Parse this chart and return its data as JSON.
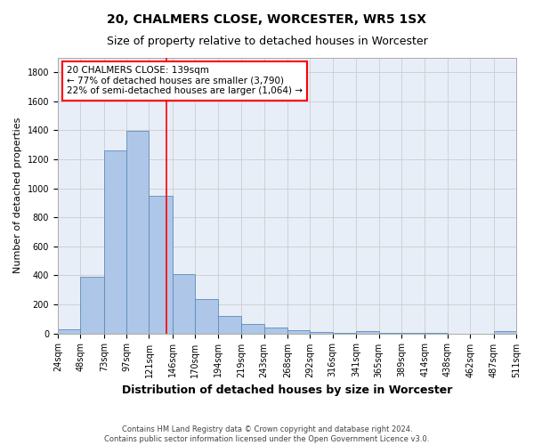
{
  "title": "20, CHALMERS CLOSE, WORCESTER, WR5 1SX",
  "subtitle": "Size of property relative to detached houses in Worcester",
  "xlabel_bottom": "Distribution of detached houses by size in Worcester",
  "ylabel": "Number of detached properties",
  "bar_edges": [
    24,
    48,
    73,
    97,
    121,
    146,
    170,
    194,
    219,
    243,
    268,
    292,
    316,
    341,
    365,
    389,
    414,
    438,
    462,
    487,
    511
  ],
  "bar_values": [
    25,
    390,
    1260,
    1395,
    950,
    410,
    235,
    120,
    65,
    40,
    20,
    10,
    5,
    15,
    5,
    5,
    2,
    0,
    0,
    15
  ],
  "bar_color": "#aec6e8",
  "bar_edge_color": "#5b8db8",
  "property_line_x": 139,
  "property_line_color": "red",
  "annotation_text": "20 CHALMERS CLOSE: 139sqm\n← 77% of detached houses are smaller (3,790)\n22% of semi-detached houses are larger (1,064) →",
  "annotation_box_color": "red",
  "ylim": [
    0,
    1900
  ],
  "yticks": [
    0,
    200,
    400,
    600,
    800,
    1000,
    1200,
    1400,
    1600,
    1800
  ],
  "footnote": "Contains HM Land Registry data © Crown copyright and database right 2024.\nContains public sector information licensed under the Open Government Licence v3.0.",
  "bg_color": "#ffffff",
  "plot_bg_color": "#e8eef8",
  "grid_color": "#cccccc",
  "title_fontsize": 10,
  "subtitle_fontsize": 9,
  "tick_label_fontsize": 7,
  "ylabel_fontsize": 8,
  "xlabel_fontsize": 9,
  "annotation_fontsize": 7.5,
  "footnote_fontsize": 6
}
